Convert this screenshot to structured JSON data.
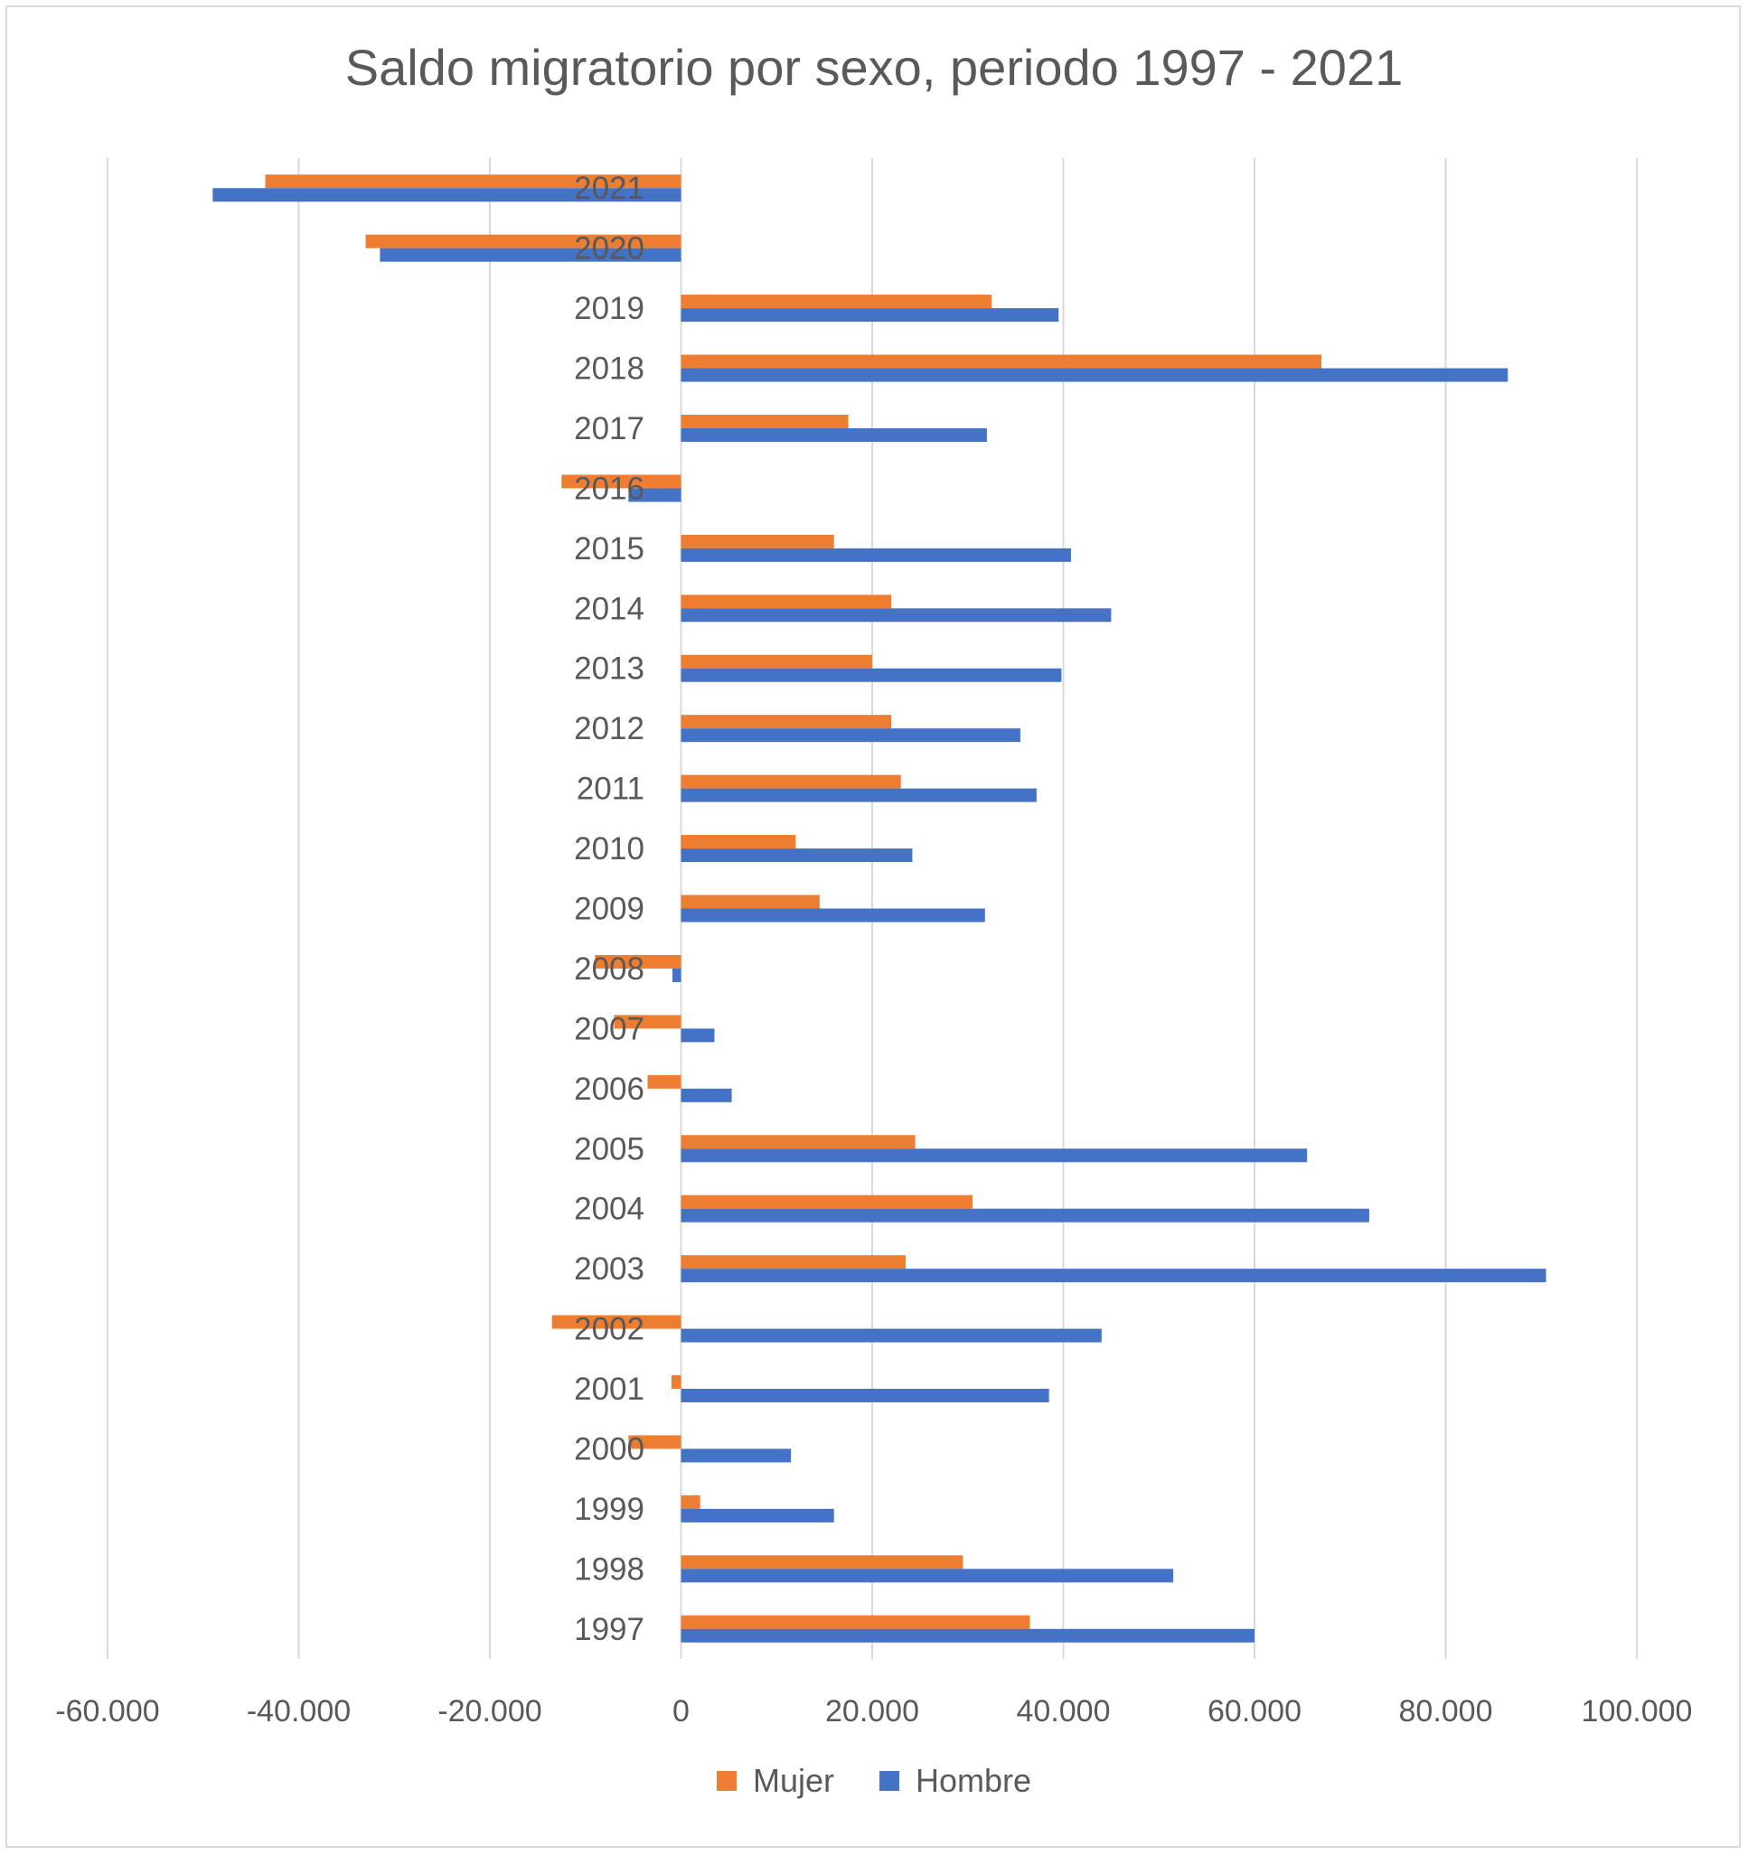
{
  "chart_data": {
    "type": "bar",
    "orientation": "horizontal",
    "title": "Saldo migratorio por sexo, periodo 1997 - 2021",
    "categories": [
      "1997",
      "1998",
      "1999",
      "2000",
      "2001",
      "2002",
      "2003",
      "2004",
      "2005",
      "2006",
      "2007",
      "2008",
      "2009",
      "2010",
      "2011",
      "2012",
      "2013",
      "2014",
      "2015",
      "2016",
      "2017",
      "2018",
      "2019",
      "2020",
      "2021"
    ],
    "series": [
      {
        "name": "Mujer",
        "color": "#ed7d31",
        "values": [
          36500,
          29500,
          2000,
          -5500,
          -1000,
          -13500,
          23500,
          30500,
          24500,
          -3500,
          -7000,
          -9000,
          14500,
          12000,
          23000,
          22000,
          20000,
          22000,
          16000,
          -12500,
          17500,
          67000,
          32500,
          -33000,
          -43500
        ]
      },
      {
        "name": "Hombre",
        "color": "#4472c4",
        "values": [
          60000,
          51500,
          16000,
          11500,
          38500,
          44000,
          90500,
          72000,
          65500,
          5300,
          3500,
          -900,
          31800,
          24200,
          37200,
          35500,
          39800,
          45000,
          40800,
          -5500,
          32000,
          86500,
          39500,
          -31500,
          -49000
        ]
      }
    ],
    "xlim": [
      -60000,
      100000
    ],
    "xticks": [
      -60000,
      -40000,
      -20000,
      0,
      20000,
      40000,
      60000,
      80000,
      100000
    ],
    "xtick_labels": [
      "-60.000",
      "-40.000",
      "-20.000",
      "0",
      "20.000",
      "40.000",
      "60.000",
      "80.000",
      "100.000"
    ],
    "grid": "vertical",
    "legend_position": "bottom"
  }
}
